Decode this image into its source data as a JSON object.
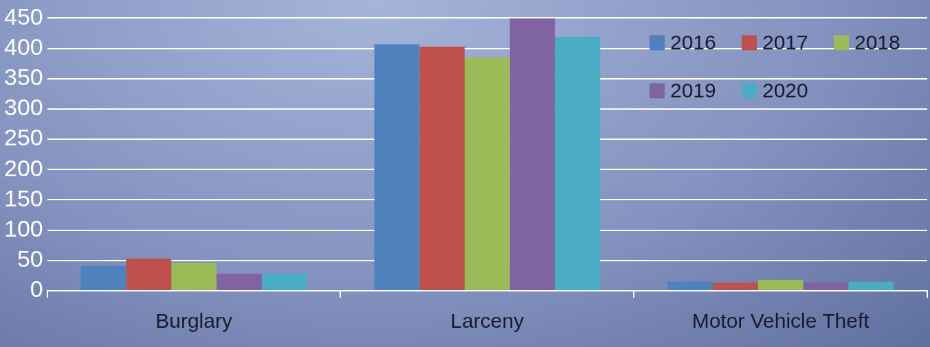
{
  "chart_data": {
    "type": "bar",
    "categories": [
      "Burglary",
      "Larceny",
      "Motor Vehicle Theft"
    ],
    "series": [
      {
        "name": "2016",
        "color": "#4f81bd",
        "values": [
          41,
          407,
          15
        ]
      },
      {
        "name": "2017",
        "color": "#c0504d",
        "values": [
          53,
          403,
          13
        ]
      },
      {
        "name": "2018",
        "color": "#9bbb59",
        "values": [
          46,
          385,
          18
        ]
      },
      {
        "name": "2019",
        "color": "#8064a2",
        "values": [
          28,
          450,
          14
        ]
      },
      {
        "name": "2020",
        "color": "#4bacc6",
        "values": [
          28,
          419,
          15
        ]
      }
    ],
    "ylim": [
      0,
      450
    ],
    "yticks": [
      0,
      50,
      100,
      150,
      200,
      250,
      300,
      350,
      400,
      450
    ],
    "grid": "y",
    "legend": "top right"
  }
}
